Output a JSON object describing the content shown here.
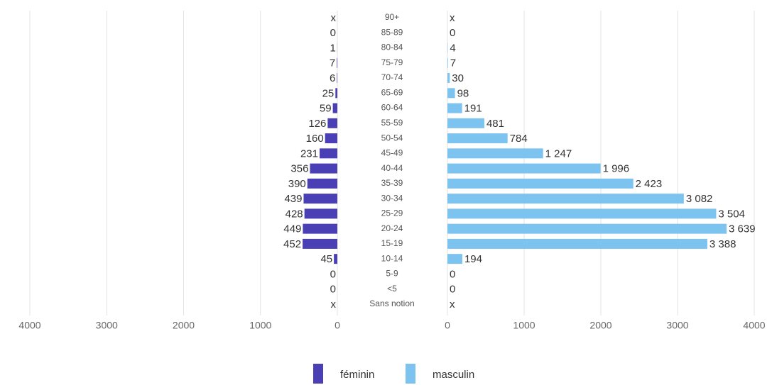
{
  "chart_data": {
    "type": "bar",
    "orientation": "horizontal",
    "layout": "pyramid",
    "categories": [
      "90+",
      "85-89",
      "80-84",
      "75-79",
      "70-74",
      "65-69",
      "60-64",
      "55-59",
      "50-54",
      "45-49",
      "40-44",
      "35-39",
      "30-34",
      "25-29",
      "20-24",
      "15-19",
      "10-14",
      "5-9",
      "<5",
      "Sans notion"
    ],
    "series": [
      {
        "name": "féminin",
        "color": "#4a3fb5",
        "side": "left",
        "values": [
          null,
          0,
          1,
          7,
          6,
          25,
          59,
          126,
          160,
          231,
          356,
          390,
          439,
          428,
          449,
          452,
          45,
          0,
          0,
          null
        ],
        "value_labels": [
          "x",
          "0",
          "1",
          "7",
          "6",
          "25",
          "59",
          "126",
          "160",
          "231",
          "356",
          "390",
          "439",
          "428",
          "449",
          "452",
          "45",
          "0",
          "0",
          "x"
        ]
      },
      {
        "name": "masculin",
        "color": "#7cc3f0",
        "side": "right",
        "values": [
          null,
          0,
          4,
          7,
          30,
          98,
          191,
          481,
          784,
          1247,
          1996,
          2423,
          3082,
          3504,
          3639,
          3388,
          194,
          0,
          0,
          null
        ],
        "value_labels": [
          "x",
          "0",
          "4",
          "7",
          "30",
          "98",
          "191",
          "481",
          "784",
          "1 247",
          "1 996",
          "2 423",
          "3 082",
          "3 504",
          "3 639",
          "3 388",
          "194",
          "0",
          "0",
          "x"
        ]
      }
    ],
    "xlim": [
      0,
      4000
    ],
    "xticks": [
      0,
      1000,
      2000,
      3000,
      4000
    ],
    "grid": true,
    "legend": "bottom"
  }
}
